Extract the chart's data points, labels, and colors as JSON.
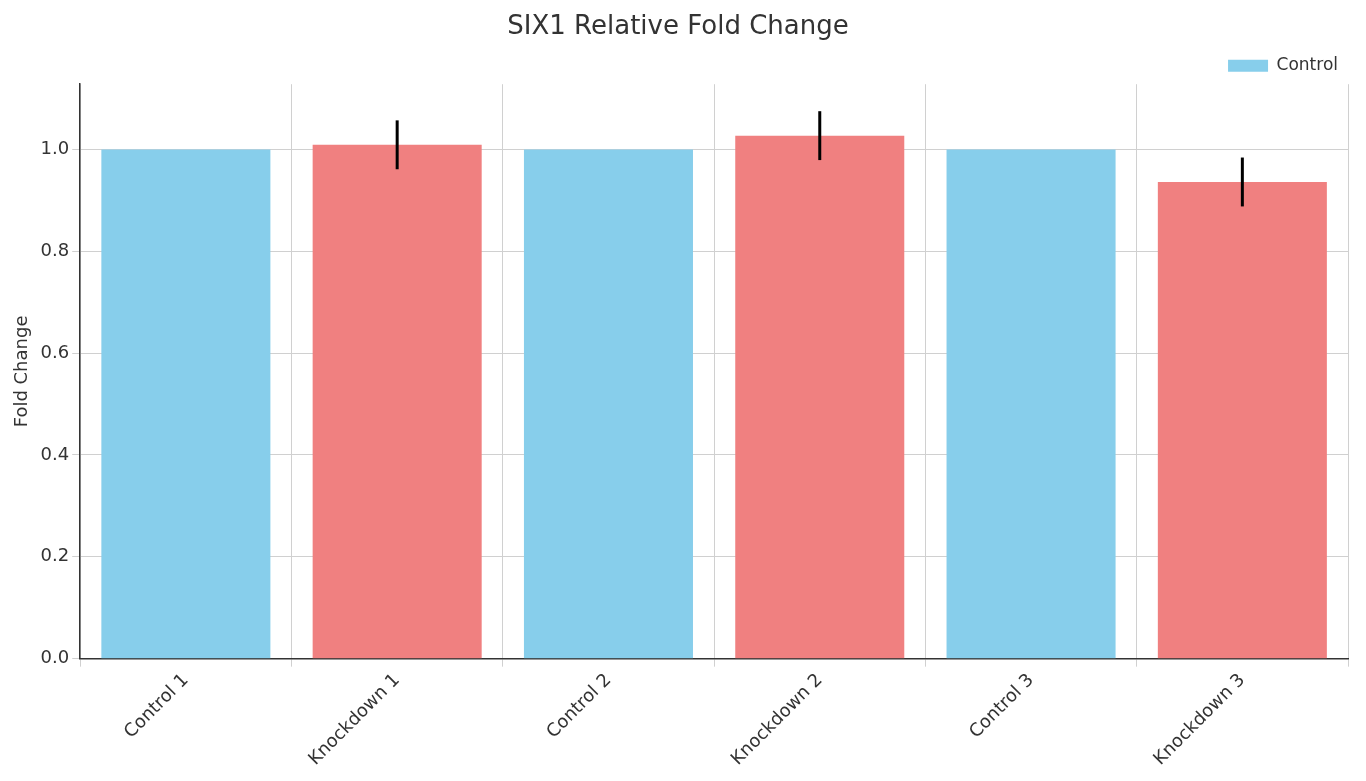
{
  "chart_data": {
    "type": "bar",
    "title": "SIX1 Relative Fold Change",
    "ylabel": "Fold Change",
    "categories": [
      "Control 1",
      "Knockdown 1",
      "Control 2",
      "Knockdown 2",
      "Control 3",
      "Knockdown 3"
    ],
    "series": [
      {
        "name": "Control",
        "color": "#87ceeb",
        "values": [
          1.0,
          null,
          1.0,
          null,
          1.0,
          null
        ]
      },
      {
        "color": "#f08080",
        "values": [
          null,
          1.009,
          null,
          1.027,
          null,
          0.936
        ],
        "errors": [
          null,
          0.048,
          null,
          0.048,
          null,
          0.048
        ]
      }
    ],
    "ylim": [
      0,
      1.128
    ],
    "yticks": [
      {
        "value": 0,
        "label": "0.0"
      },
      {
        "value": 0.2,
        "label": "0.2"
      },
      {
        "value": 0.4,
        "label": "0.4"
      },
      {
        "value": 0.6,
        "label": "0.6"
      },
      {
        "value": 0.8,
        "label": "0.8"
      },
      {
        "value": 1.0,
        "label": "1.0"
      }
    ],
    "grid": true,
    "legend": "top right"
  }
}
